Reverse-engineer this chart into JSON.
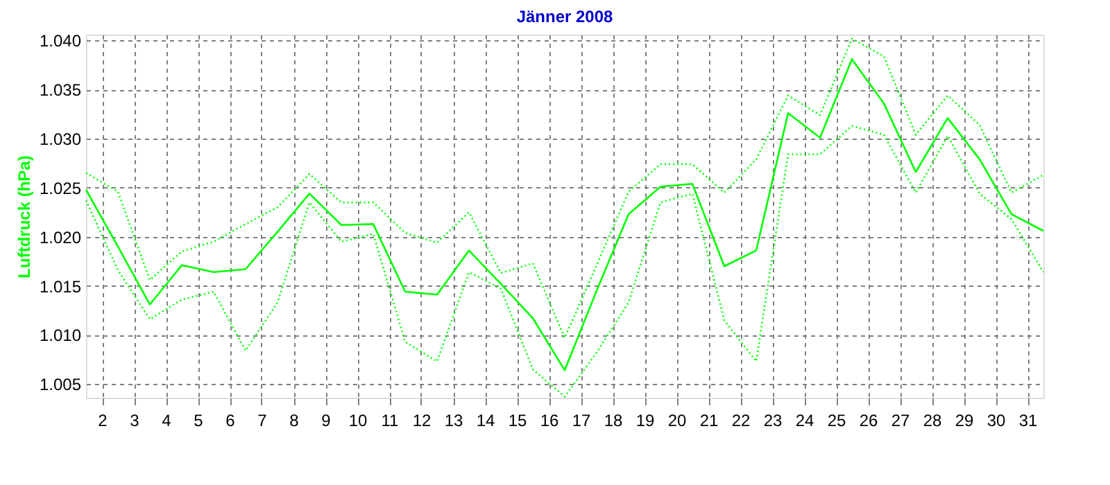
{
  "chart_data": {
    "type": "line",
    "title": "Jänner 2008",
    "ylabel": "Luftdruck  (hPa)",
    "x": [
      1.5,
      2.5,
      3.5,
      4.5,
      5.5,
      6.5,
      7.5,
      8.5,
      9.5,
      10.5,
      11.5,
      12.5,
      13.5,
      14.5,
      15.5,
      16.5,
      17.5,
      18.5,
      19.5,
      20.5,
      21.5,
      22.5,
      23.5,
      24.5,
      25.5,
      26.5,
      27.5,
      28.5,
      29.5,
      30.5,
      31.5
    ],
    "series": [
      {
        "color": "#00ff00",
        "line_style": "solid",
        "values": [
          1024.8,
          1019.0,
          1013.1,
          1017.1,
          1016.4,
          1016.7,
          1020.5,
          1024.4,
          1021.2,
          1021.3,
          1014.4,
          1014.1,
          1018.6,
          1015.2,
          1011.7,
          1006.4,
          1014.5,
          1022.3,
          1025.1,
          1025.4,
          1017.0,
          1018.6,
          1032.6,
          1030.1,
          1038.1,
          1033.6,
          1026.6,
          1032.1,
          1027.9,
          1022.3,
          1020.6
        ]
      },
      {
        "color": "#00ff00",
        "line_style": "dotted",
        "values": [
          1026.5,
          1024.6,
          1015.6,
          1018.5,
          1019.5,
          1021.3,
          1023.0,
          1026.4,
          1023.5,
          1023.5,
          1020.4,
          1019.4,
          1022.5,
          1016.3,
          1017.3,
          1009.7,
          1017.1,
          1024.6,
          1027.4,
          1027.4,
          1024.5,
          1027.9,
          1034.4,
          1032.4,
          1040.2,
          1038.4,
          1030.4,
          1034.4,
          1031.4,
          1024.5,
          1026.3
        ]
      },
      {
        "color": "#00ff00",
        "line_style": "dotted",
        "values": [
          1023.7,
          1016.6,
          1011.6,
          1013.6,
          1014.4,
          1008.4,
          1013.3,
          1023.5,
          1019.5,
          1020.3,
          1009.3,
          1007.3,
          1016.4,
          1014.7,
          1006.5,
          1003.7,
          1008.2,
          1013.3,
          1023.5,
          1024.4,
          1011.5,
          1007.3,
          1028.4,
          1028.4,
          1031.3,
          1030.4,
          1024.5,
          1030.3,
          1024.4,
          1021.8,
          1016.4
        ]
      }
    ],
    "xlim": [
      1.5,
      31.5
    ],
    "xticks": [
      2,
      3,
      4,
      5,
      6,
      7,
      8,
      9,
      10,
      11,
      12,
      13,
      14,
      15,
      16,
      17,
      18,
      19,
      20,
      21,
      22,
      23,
      24,
      25,
      26,
      27,
      28,
      29,
      30,
      31
    ],
    "ylim": [
      1003.6,
      1040.6
    ],
    "yticks": [
      {
        "value": 1005,
        "label": "1.005"
      },
      {
        "value": 1010,
        "label": "1.010"
      },
      {
        "value": 1015,
        "label": "1.015"
      },
      {
        "value": 1020,
        "label": "1.020"
      },
      {
        "value": 1025,
        "label": "1.025"
      },
      {
        "value": 1030,
        "label": "1.030"
      },
      {
        "value": 1035,
        "label": "1.035"
      },
      {
        "value": 1040,
        "label": "1.040"
      }
    ],
    "grid": true,
    "marker": "none"
  }
}
